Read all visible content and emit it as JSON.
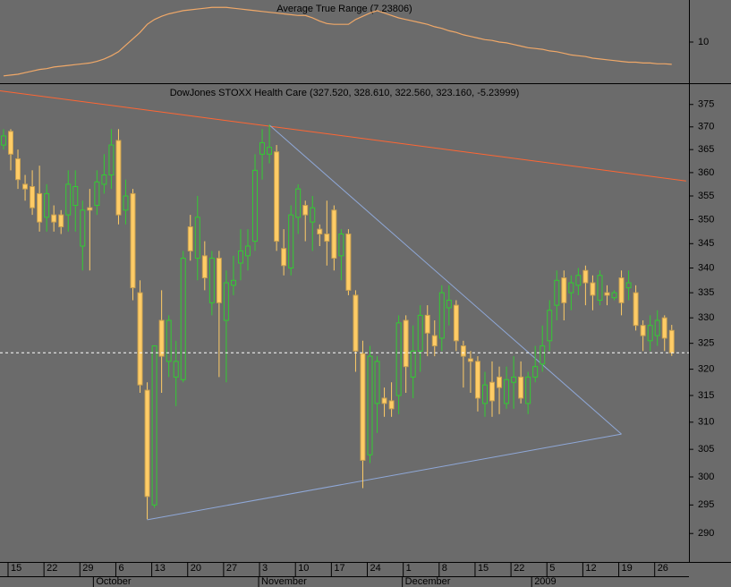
{
  "chart_data": [
    {
      "type": "line",
      "title": "Average True Range (7.23806)",
      "color": "#f0a868",
      "values": [
        5.8,
        5.9,
        6.0,
        6.2,
        6.4,
        6.6,
        6.7,
        6.9,
        7.0,
        7.1,
        7.2,
        7.3,
        7.4,
        7.6,
        7.9,
        8.3,
        8.8,
        9.6,
        10.4,
        11.2,
        12.2,
        12.8,
        13.2,
        13.5,
        13.7,
        13.9,
        14.0,
        14.1,
        14.2,
        14.3,
        14.3,
        14.3,
        14.2,
        14.1,
        14.0,
        13.9,
        13.8,
        13.7,
        13.6,
        13.5,
        13.4,
        13.3,
        13.3,
        13.0,
        12.6,
        12.3,
        12.2,
        12.2,
        12.2,
        12.8,
        13.2,
        13.6,
        13.9,
        13.6,
        13.3,
        13.0,
        12.8,
        12.6,
        12.4,
        12.2,
        11.9,
        11.7,
        11.4,
        11.2,
        10.9,
        10.7,
        10.5,
        10.3,
        10.2,
        10.0,
        9.9,
        9.7,
        9.5,
        9.3,
        9.2,
        9.1,
        8.9,
        8.8,
        8.6,
        8.4,
        8.3,
        8.2,
        8.0,
        7.9,
        7.8,
        7.7,
        7.6,
        7.5,
        7.5,
        7.4,
        7.4,
        7.3,
        7.3,
        7.23806
      ],
      "ylim": [
        4.89,
        15.22
      ],
      "yticks": [
        10
      ]
    },
    {
      "type": "candlestick",
      "title": "DowJones STOXX Health Care (327.520, 328.610, 322.560, 323.160, -5.23999)",
      "categories": [
        null,
        "15",
        null,
        null,
        null,
        null,
        "22",
        null,
        null,
        null,
        null,
        "29",
        null,
        null,
        null,
        null,
        "6",
        null,
        null,
        null,
        null,
        "13",
        null,
        null,
        null,
        null,
        "20",
        null,
        null,
        null,
        null,
        "27",
        null,
        null,
        null,
        null,
        "3",
        null,
        null,
        null,
        null,
        "10",
        null,
        null,
        null,
        null,
        "17",
        null,
        null,
        null,
        null,
        "24",
        null,
        null,
        null,
        null,
        "1",
        null,
        null,
        null,
        null,
        "8",
        null,
        null,
        null,
        null,
        "15",
        null,
        null,
        null,
        null,
        "22",
        null,
        null,
        null,
        null,
        "5",
        null,
        null,
        null,
        null,
        "12",
        null,
        null,
        null,
        null,
        "19",
        null,
        null,
        null,
        null,
        "26",
        null,
        null
      ],
      "months": [
        null,
        null,
        null,
        null,
        null,
        null,
        null,
        null,
        null,
        null,
        null,
        null,
        null,
        "October",
        null,
        null,
        null,
        null,
        null,
        null,
        null,
        null,
        null,
        null,
        null,
        null,
        null,
        null,
        null,
        null,
        null,
        null,
        null,
        null,
        null,
        null,
        "November",
        null,
        null,
        null,
        null,
        null,
        null,
        null,
        null,
        null,
        null,
        null,
        null,
        null,
        null,
        null,
        null,
        null,
        null,
        null,
        "December",
        null,
        null,
        null,
        null,
        null,
        null,
        null,
        null,
        null,
        null,
        null,
        null,
        null,
        null,
        null,
        null,
        null,
        "2009",
        null,
        null,
        null,
        null,
        null,
        null,
        null,
        null,
        null,
        null,
        null,
        null,
        null,
        null,
        null,
        null,
        null,
        null
      ],
      "open": [
        366,
        369,
        363,
        357.5,
        357,
        355.5,
        350.5,
        351,
        351,
        351,
        353,
        344.5,
        352.5,
        353,
        357.5,
        359.5,
        367,
        352,
        355.5,
        335,
        316,
        295,
        329.5,
        321.5,
        318.5,
        318,
        348.5,
        342,
        342.5,
        333,
        342,
        329.5,
        336.5,
        341,
        342.5,
        345.5,
        364,
        364,
        364.5,
        344,
        340,
        350.5,
        353,
        349.5,
        348,
        347,
        352,
        342.5,
        347,
        334.5,
        323,
        304,
        313.5,
        314.5,
        314,
        315,
        329.5,
        318.5,
        323.5,
        330.5,
        326.5,
        326,
        332,
        332.5,
        324.5,
        322,
        321.5,
        313.5,
        317.5,
        318.5,
        313.5,
        317.5,
        318.5,
        313.5,
        318.5,
        321,
        325.5,
        332.5,
        338,
        335,
        336.5,
        339.5,
        337,
        333.5,
        335,
        334,
        338,
        336,
        335,
        328.5,
        325.5,
        326.5,
        330,
        327.52
      ],
      "high": [
        369.5,
        369.5,
        365,
        359.5,
        360.5,
        361.5,
        357.5,
        353,
        352,
        360.5,
        360.5,
        354,
        356.5,
        360.5,
        364,
        369.5,
        369.5,
        358.5,
        356.5,
        337.5,
        317.5,
        324.5,
        335.5,
        330.5,
        325.5,
        343.5,
        351,
        355,
        345.5,
        343.5,
        343.5,
        339.5,
        342.5,
        348,
        348,
        364,
        369.5,
        370.5,
        366,
        348,
        353,
        357.5,
        354,
        355,
        349,
        354,
        353,
        348,
        348,
        335.5,
        325.5,
        324.5,
        322.5,
        316.5,
        317.5,
        330.5,
        330.5,
        328.5,
        332.5,
        332.5,
        329.5,
        336.5,
        336.5,
        333.5,
        325.5,
        323.5,
        322.5,
        319.5,
        321.5,
        320.5,
        320.5,
        322.5,
        321.5,
        319.5,
        324.5,
        328.5,
        333.5,
        339.5,
        339.5,
        338.5,
        340,
        340.5,
        338.5,
        339.5,
        336.5,
        335.5,
        339.5,
        339.5,
        336.5,
        329.5,
        330.5,
        331.5,
        330.5,
        328.61
      ],
      "low": [
        365,
        360.5,
        356.5,
        354,
        351,
        347.5,
        347.5,
        347.5,
        347,
        347.5,
        347.5,
        339.5,
        339.5,
        351,
        355.5,
        356.5,
        349,
        349,
        333.5,
        315.5,
        292.5,
        294.5,
        315.5,
        318.5,
        313,
        317.5,
        341.5,
        337.5,
        335.5,
        330.5,
        318.5,
        317.5,
        334.5,
        337.5,
        339.5,
        343.5,
        358.5,
        362,
        343.5,
        338.5,
        338.5,
        347,
        345.5,
        343.5,
        344.5,
        340.5,
        339.5,
        337.5,
        334.5,
        319.5,
        298,
        302.5,
        308,
        311,
        311,
        311.5,
        315.5,
        314.5,
        319.5,
        322.5,
        322.5,
        323.5,
        328.5,
        323.5,
        316.5,
        315.5,
        312,
        311,
        311,
        311.5,
        312.5,
        312.5,
        313.5,
        311.5,
        317.5,
        319.5,
        323.5,
        329.5,
        329.5,
        331.5,
        334.5,
        332.5,
        331.5,
        332.5,
        332.5,
        333.5,
        330.5,
        333.5,
        327.5,
        323.5,
        323.5,
        324.5,
        323.5,
        322.56
      ],
      "close": [
        368,
        364,
        358.5,
        356.5,
        352.5,
        349.5,
        355.5,
        349.5,
        348.5,
        357.5,
        357,
        352,
        352,
        358,
        359.5,
        366,
        351,
        355,
        336,
        317,
        296.5,
        324.5,
        322.5,
        329.5,
        321.5,
        342,
        343.5,
        350.5,
        338,
        342,
        333,
        337,
        337.5,
        343.5,
        344.5,
        360.5,
        366.5,
        365.5,
        345.5,
        340.5,
        351,
        356.5,
        351,
        352.5,
        347,
        345.5,
        342,
        347,
        335.5,
        323.5,
        303,
        322.5,
        321.5,
        313.5,
        312.5,
        329,
        320.5,
        323.5,
        330.5,
        327,
        324.5,
        335,
        333.5,
        325.5,
        322.5,
        321.5,
        314.5,
        317,
        314,
        316.5,
        318,
        318.5,
        314.5,
        318.5,
        320.5,
        324.5,
        331.5,
        337.5,
        333,
        337,
        338.5,
        337,
        334.5,
        338.5,
        334.5,
        335,
        333,
        337,
        328.5,
        326.5,
        328.5,
        329.5,
        326,
        323.16
      ],
      "up_color": "#33cc33",
      "down_color": "#ffcc66",
      "ylim": [
        285.1,
        379.4
      ],
      "log_scale": true,
      "yticks": [
        290,
        295,
        300,
        305,
        310,
        315,
        320,
        325,
        330,
        335,
        340,
        345,
        350,
        355,
        360,
        365,
        370,
        375
      ],
      "price_line": true,
      "lines": [
        {
          "color": "#ff6633",
          "x": [
            -1,
            95
          ],
          "y": [
            378.2,
            358.2
          ]
        },
        {
          "color": "#8fa8d8",
          "x": [
            20,
            86
          ],
          "y": [
            292.4,
            307.8
          ]
        },
        {
          "color": "#8fa8d8",
          "x": [
            37,
            86
          ],
          "y": [
            370.4,
            307.8
          ]
        }
      ]
    }
  ]
}
